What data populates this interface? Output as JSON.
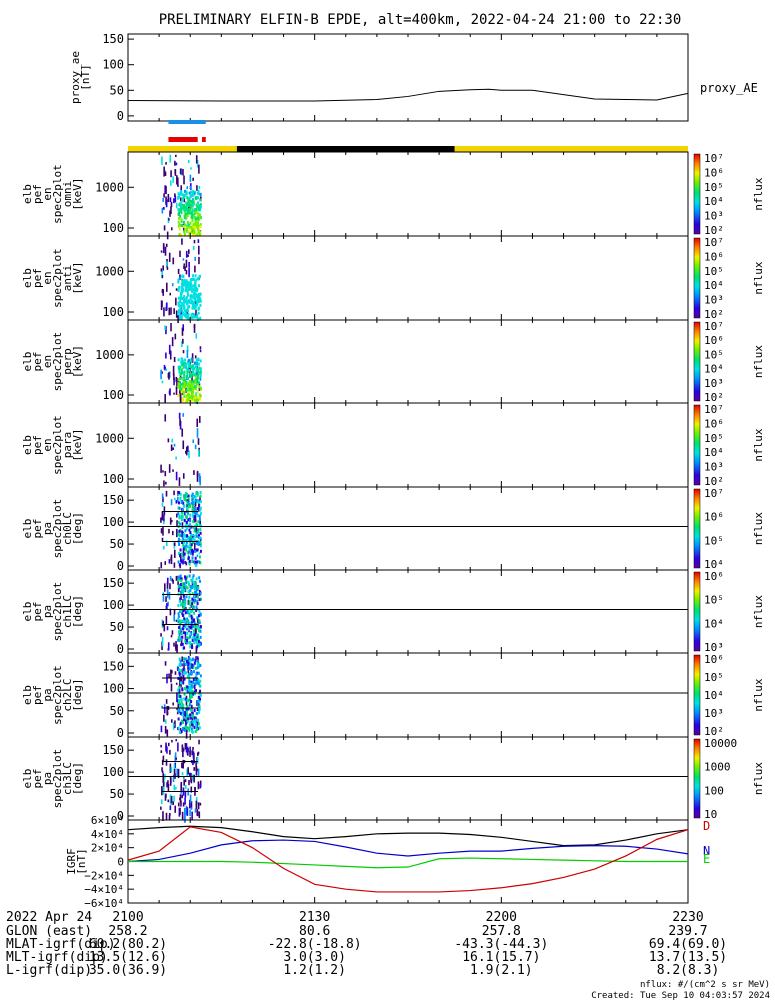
{
  "title": "PRELIMINARY ELFIN-B EPDE, alt=400km, 2022-04-24 21:00 to 22:30",
  "colors": {
    "bar_blue": "#1a8fe6",
    "bar_red": "#e60000",
    "bar_yellow": "#f2d400",
    "bar_black": "#000000",
    "bx": "#0000cc",
    "by": "#00cc00",
    "bz": "#cc0000",
    "bt": "#000000"
  },
  "chart_data": [
    {
      "id": "proxy_ae",
      "type": "line",
      "ylabel": [
        "proxy_ae",
        "[nT]"
      ],
      "legend": "proxy_AE",
      "yticks": [
        "150",
        "100",
        "50",
        "0"
      ],
      "ylim": [
        -10,
        160
      ],
      "x_minutes": [
        0,
        15,
        30,
        40,
        45,
        50,
        55,
        58,
        60,
        65,
        75,
        80,
        85,
        90
      ],
      "y": [
        30,
        29,
        29,
        32,
        38,
        48,
        51,
        52,
        50,
        50,
        33,
        32,
        31,
        44
      ]
    },
    {
      "id": "science_zones",
      "type": "bar",
      "segments": [
        {
          "label": "blue",
          "from": 6.5,
          "to": 12.5
        },
        {
          "label": "red",
          "from": 6.5,
          "to": 11.2
        },
        {
          "label": "red",
          "from": 11.9,
          "to": 12.5
        },
        {
          "label": "yellow",
          "from": 0,
          "to": 17.5
        },
        {
          "label": "black",
          "from": 17.5,
          "to": 52.5
        },
        {
          "label": "yellow",
          "from": 52.5,
          "to": 90
        }
      ]
    },
    {
      "id": "omni",
      "type": "heatmap",
      "ylabel": [
        "elb",
        "pef",
        "en",
        "spec2plot",
        "omni",
        "[keV]"
      ],
      "yticks": [
        "1000",
        "100"
      ],
      "colorbar": {
        "label": "nflux",
        "ticks": [
          "10⁷",
          "10⁶",
          "10⁵",
          "10⁴",
          "10³",
          "10²"
        ]
      }
    },
    {
      "id": "anti",
      "type": "heatmap",
      "ylabel": [
        "elb",
        "pef",
        "en",
        "spec2plot",
        "anti",
        "[keV]"
      ],
      "yticks": [
        "1000",
        "100"
      ],
      "colorbar": {
        "label": "nflux",
        "ticks": [
          "10⁷",
          "10⁶",
          "10⁵",
          "10⁴",
          "10³",
          "10²"
        ]
      }
    },
    {
      "id": "perp",
      "type": "heatmap",
      "ylabel": [
        "elb",
        "pef",
        "en",
        "spec2plot",
        "perp",
        "[keV]"
      ],
      "yticks": [
        "1000",
        "100"
      ],
      "colorbar": {
        "label": "nflux",
        "ticks": [
          "10⁷",
          "10⁶",
          "10⁵",
          "10⁴",
          "10³",
          "10²"
        ]
      }
    },
    {
      "id": "para",
      "type": "heatmap",
      "ylabel": [
        "elb",
        "pef",
        "en",
        "spec2plot",
        "para",
        "[keV]"
      ],
      "yticks": [
        "1000",
        "100"
      ],
      "colorbar": {
        "label": "nflux",
        "ticks": [
          "10⁷",
          "10⁶",
          "10⁵",
          "10⁴",
          "10³",
          "10²"
        ]
      }
    },
    {
      "id": "ch0LC",
      "type": "heatmap",
      "ylabel": [
        "elb",
        "pef",
        "pa",
        "spec2plot",
        "ch0LC",
        "[deg]"
      ],
      "yticks": [
        "150",
        "100",
        "50",
        "0"
      ],
      "colorbar": {
        "label": "nflux",
        "ticks": [
          "10⁷",
          "10⁶",
          "10⁵",
          "10⁴"
        ]
      }
    },
    {
      "id": "ch1LC",
      "type": "heatmap",
      "ylabel": [
        "elb",
        "pef",
        "pa",
        "spec2plot",
        "ch1LC",
        "[deg]"
      ],
      "yticks": [
        "150",
        "100",
        "50",
        "0"
      ],
      "colorbar": {
        "label": "nflux",
        "ticks": [
          "10⁶",
          "10⁵",
          "10⁴",
          "10³"
        ]
      }
    },
    {
      "id": "ch2LC",
      "type": "heatmap",
      "ylabel": [
        "elb",
        "pef",
        "pa",
        "spec2plot",
        "ch2LC",
        "[deg]"
      ],
      "yticks": [
        "150",
        "100",
        "50",
        "0"
      ],
      "colorbar": {
        "label": "nflux",
        "ticks": [
          "10⁶",
          "10⁵",
          "10⁴",
          "10³",
          "10²"
        ]
      }
    },
    {
      "id": "ch3LC",
      "type": "heatmap",
      "ylabel": [
        "elb",
        "pef",
        "pa",
        "spec2plot",
        "ch3LC",
        "[deg]"
      ],
      "yticks": [
        "150",
        "100",
        "50",
        "0"
      ],
      "colorbar": {
        "label": "nflux",
        "ticks": [
          "10000",
          "1000",
          "100",
          "10"
        ]
      }
    },
    {
      "id": "igrf",
      "type": "line",
      "ylabel": [
        "IGRF",
        "[nT]"
      ],
      "yticks": [
        "6×10⁴",
        "4×10⁴",
        "2×10⁴",
        "0",
        "−2×10⁴",
        "−4×10⁴",
        "−6×10⁴"
      ],
      "ylim": [
        -60000,
        60000
      ],
      "legend": [
        "D",
        "N",
        "E"
      ],
      "x_minutes": [
        0,
        5,
        10,
        15,
        20,
        25,
        30,
        35,
        40,
        45,
        50,
        55,
        60,
        65,
        70,
        75,
        80,
        85,
        90
      ],
      "series": [
        {
          "key": "bt",
          "values": [
            46000,
            49000,
            51000,
            49000,
            43000,
            36000,
            33000,
            36000,
            40000,
            41000,
            41000,
            39000,
            35000,
            29000,
            23000,
            24000,
            31000,
            40000,
            46000
          ]
        },
        {
          "key": "bx",
          "values": [
            0,
            3000,
            12000,
            24000,
            30000,
            31000,
            29000,
            21000,
            12000,
            8000,
            12000,
            15000,
            15000,
            19000,
            22000,
            23000,
            22000,
            18000,
            11000
          ]
        },
        {
          "key": "by",
          "values": [
            0,
            0,
            0,
            0,
            -1000,
            -3000,
            -5000,
            -7000,
            -9000,
            -8000,
            4000,
            5000,
            4000,
            3000,
            2000,
            1000,
            0,
            0,
            0
          ]
        },
        {
          "key": "bz",
          "values": [
            2000,
            15000,
            50000,
            42000,
            20000,
            -10000,
            -33000,
            -40000,
            -44000,
            -44000,
            -44000,
            -42000,
            -38000,
            -32000,
            -23000,
            -11000,
            8000,
            32000,
            46000
          ]
        }
      ]
    }
  ],
  "x_axis": {
    "date": "2022 Apr 24",
    "ticks": [
      "2100",
      "2130",
      "2200",
      "2230"
    ],
    "rows": [
      {
        "label": "GLON (east)",
        "values": [
          "258.2",
          "80.6",
          "257.8",
          "239.7"
        ]
      },
      {
        "label": "MLAT-igrf(dip)",
        "values": [
          "60.2(80.2)",
          "-22.8(-18.8)",
          "-43.3(-44.3)",
          "69.4(69.0)"
        ]
      },
      {
        "label": "MLT-igrf(dip)",
        "values": [
          "13.5(12.6)",
          "3.0(3.0)",
          "16.1(15.7)",
          "13.7(13.5)"
        ]
      },
      {
        "label": "L-igrf(dip)",
        "values": [
          "35.0(36.9)",
          "1.2(1.2)",
          "1.9(2.1)",
          "8.2(8.3)"
        ]
      }
    ]
  },
  "footer": {
    "units": "nflux: #/(cm^2 s sr MeV)",
    "created": "Created: Tue Sep 10 04:03:57 2024"
  }
}
